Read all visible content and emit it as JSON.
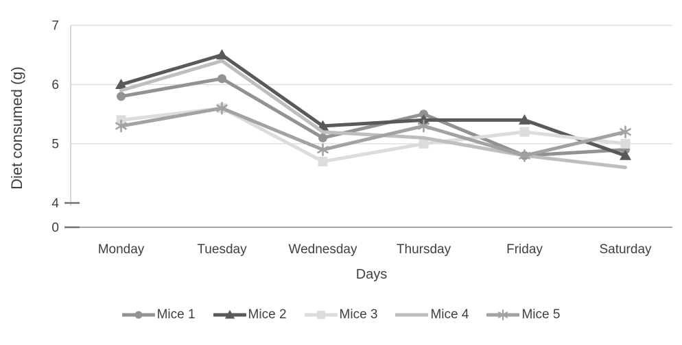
{
  "figure": {
    "background": "#ffffff",
    "text_color": "#404040",
    "gridline_color": "#d9d9d9",
    "y_axis_line_color": "#c4c4c4",
    "x_axis_line_color": "#a6a6a6",
    "tick_color": "#737373"
  },
  "chart_data": {
    "type": "line",
    "title": "",
    "xlabel": "Days",
    "ylabel": "Diet consumed (g)",
    "categories": [
      "Monday",
      "Tuesday",
      "Wednesday",
      "Thursday",
      "Friday",
      "Saturday"
    ],
    "series": [
      {
        "name": "Mice 1",
        "marker": "circle",
        "color": "#929292",
        "values": [
          5.8,
          6.1,
          5.1,
          5.5,
          4.8,
          4.9
        ]
      },
      {
        "name": "Mice 2",
        "marker": "triangle",
        "color": "#595959",
        "values": [
          6.0,
          6.5,
          5.3,
          5.4,
          5.4,
          4.8
        ]
      },
      {
        "name": "Mice 3",
        "marker": "square",
        "color": "#dcdcdc",
        "values": [
          5.4,
          5.6,
          4.7,
          5.0,
          5.2,
          5.0
        ]
      },
      {
        "name": "Mice 4",
        "marker": "none",
        "color": "#bebebe",
        "values": [
          5.9,
          6.4,
          5.2,
          5.1,
          4.8,
          4.6
        ]
      },
      {
        "name": "Mice 5",
        "marker": "asterisk",
        "color": "#a2a2a2",
        "values": [
          5.3,
          5.6,
          4.9,
          5.3,
          4.8,
          5.2
        ]
      }
    ],
    "y_axis": {
      "tick_labels": [
        "7",
        "6",
        "5",
        "4",
        "0"
      ],
      "display_range": [
        4,
        7
      ],
      "broken_axis": true,
      "gridline_values": [
        7,
        6,
        5
      ]
    },
    "legend": {
      "position": "bottom",
      "labels": [
        "Mice 1",
        "Mice 2",
        "Mice 3",
        "Mice 4",
        "Mice 5"
      ]
    }
  }
}
